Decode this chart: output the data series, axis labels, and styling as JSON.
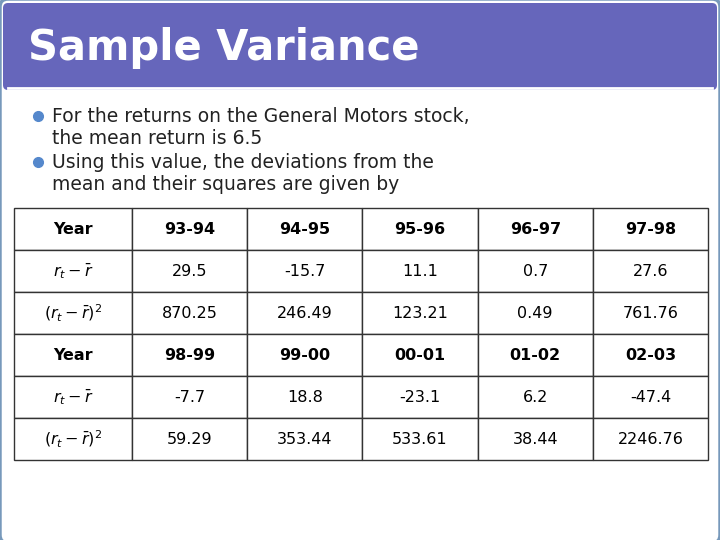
{
  "title": "Sample Variance",
  "title_bg_color": "#6666bb",
  "title_text_color": "#ffffff",
  "body_bg_color": "#ffffff",
  "border_color": "#7799bb",
  "bullet_color": "#5588cc",
  "bullet1_line1": "For the returns on the General Motors stock,",
  "bullet1_line2": "the mean return is 6.5",
  "bullet2_line1": "Using this value, the deviations from the",
  "bullet2_line2": "mean and their squares are given by",
  "table1_headers": [
    "Year",
    "93-94",
    "94-95",
    "95-96",
    "96-97",
    "97-98"
  ],
  "table1_row1_values": [
    "29.5",
    "-15.7",
    "11.1",
    "0.7",
    "27.6"
  ],
  "table1_row2_values": [
    "870.25",
    "246.49",
    "123.21",
    "0.49",
    "761.76"
  ],
  "table2_headers": [
    "Year",
    "98-99",
    "99-00",
    "00-01",
    "01-02",
    "02-03"
  ],
  "table2_row1_values": [
    "-7.7",
    "18.8",
    "-23.1",
    "6.2",
    "-47.4"
  ],
  "table2_row2_values": [
    "59.29",
    "353.44",
    "533.61",
    "38.44",
    "2246.76"
  ],
  "table_border_color": "#333333",
  "table_text_color": "#000000",
  "slide_bg_color": "#eeeef5"
}
